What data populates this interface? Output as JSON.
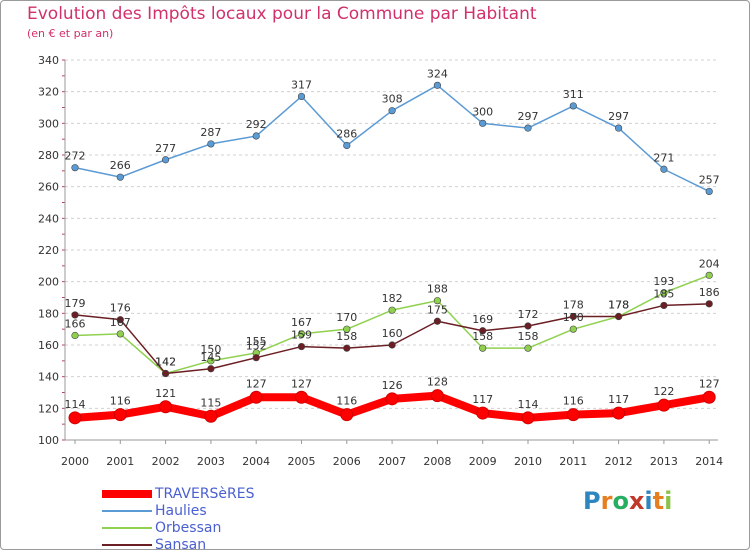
{
  "title": "Evolution des Impôts locaux pour la Commune par Habitant",
  "subtitle": "(en € et par an)",
  "logo": {
    "text": "Proxiti",
    "letters": [
      {
        "ch": "P",
        "color": "#2e86c1"
      },
      {
        "ch": "r",
        "color": "#e67e22"
      },
      {
        "ch": "o",
        "color": "#27ae60"
      },
      {
        "ch": "x",
        "color": "#c0392b"
      },
      {
        "ch": "i",
        "color": "#2e86c1"
      },
      {
        "ch": "t",
        "color": "#e67e22"
      },
      {
        "ch": "i",
        "color": "#8bc34a"
      }
    ]
  },
  "chart_data": {
    "type": "line",
    "title": "Evolution des Impôts locaux pour la Commune par Habitant",
    "subtitle": "(en € et par an)",
    "x": [
      2000,
      2001,
      2002,
      2003,
      2004,
      2005,
      2006,
      2007,
      2008,
      2009,
      2010,
      2011,
      2012,
      2013,
      2014
    ],
    "ylim": [
      100,
      340
    ],
    "yticks": [
      100,
      120,
      140,
      160,
      180,
      200,
      220,
      240,
      260,
      280,
      300,
      320,
      340
    ],
    "grid": "horizontal dashed",
    "legend_position": "bottom-left",
    "series": [
      {
        "name": "TRAVERSèRES",
        "color": "#ff0000",
        "values": [
          114,
          116,
          121,
          115,
          127,
          127,
          116,
          126,
          128,
          117,
          114,
          116,
          117,
          122,
          127
        ]
      },
      {
        "name": "Haulies",
        "color": "#5b9bd5",
        "values": [
          272,
          266,
          277,
          287,
          292,
          317,
          286,
          308,
          324,
          300,
          297,
          311,
          297,
          271,
          257
        ]
      },
      {
        "name": "Orbessan",
        "color": "#8fd14f",
        "values": [
          166,
          167,
          142,
          150,
          155,
          167,
          170,
          182,
          188,
          158,
          158,
          170,
          178,
          193,
          204
        ]
      },
      {
        "name": "Sansan",
        "color": "#6b1f24",
        "values": [
          179,
          176,
          142,
          145,
          152,
          159,
          158,
          160,
          175,
          169,
          172,
          178,
          178,
          185,
          186
        ]
      }
    ]
  }
}
